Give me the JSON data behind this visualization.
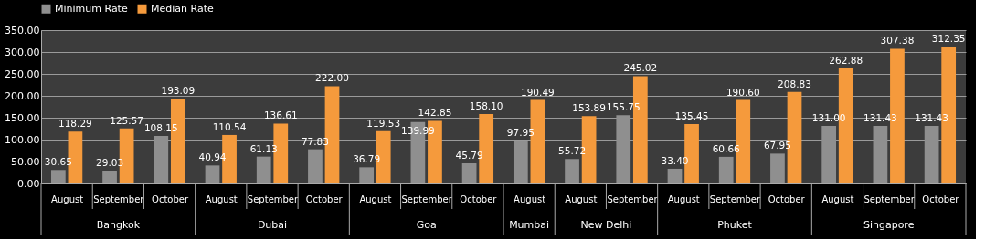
{
  "chart_data": {
    "type": "bar",
    "categories": [
      "August",
      "September",
      "October",
      "August",
      "September",
      "October",
      "August",
      "September",
      "October",
      "August",
      "August",
      "September",
      "August",
      "September",
      "October",
      "August",
      "September",
      "October"
    ],
    "series": [
      {
        "name": "Minimum Rate",
        "color": "#8f8f8f",
        "values": [
          30.65,
          29.03,
          108.15,
          40.94,
          61.13,
          77.83,
          36.79,
          139.99,
          45.79,
          97.95,
          55.72,
          155.75,
          33.4,
          60.66,
          67.95,
          131,
          131.43,
          131.43
        ],
        "value_labels": [
          "30.65",
          "29.03",
          "108.15",
          "40.94",
          "61.13",
          "77.83",
          "36.79",
          "139.99",
          "45.79",
          "97.95",
          "55.72",
          "155.75",
          "33.40",
          "60.66",
          "67.95",
          "131.00",
          "131.43",
          "131.43"
        ]
      },
      {
        "name": "Median Rate",
        "color": "#f59a3c",
        "values": [
          118.29,
          125.57,
          193.09,
          110.54,
          136.61,
          222,
          119.53,
          142.85,
          158.1,
          190.49,
          153.89,
          245.02,
          135.45,
          190.6,
          208.83,
          262.88,
          307.38,
          312.35
        ],
        "value_labels": [
          "118.29",
          "125.57",
          "193.09",
          "110.54",
          "136.61",
          "222.00",
          "119.53",
          "142.85",
          "158.10",
          "190.49",
          "153.89",
          "245.02",
          "135.45",
          "190.60",
          "208.83",
          "262.88",
          "307.38",
          "312.35"
        ]
      }
    ],
    "annotations": [
      "Bangkok",
      "Dubai",
      "Goa",
      "Mumbai",
      "New Delhi",
      "Phuket",
      "Singapore"
    ],
    "ylim": [
      0,
      350
    ],
    "yticks": [
      {
        "value": 0,
        "label": "0.00"
      },
      {
        "value": 50,
        "label": "50.00"
      },
      {
        "value": 100,
        "label": "100.00"
      },
      {
        "value": 150,
        "label": "150.00"
      },
      {
        "value": 200,
        "label": "200.00"
      },
      {
        "value": 250,
        "label": "250.00"
      },
      {
        "value": 300,
        "label": "300.00"
      },
      {
        "value": 350,
        "label": "350.00"
      }
    ],
    "grid": "y",
    "legend": "top"
  }
}
